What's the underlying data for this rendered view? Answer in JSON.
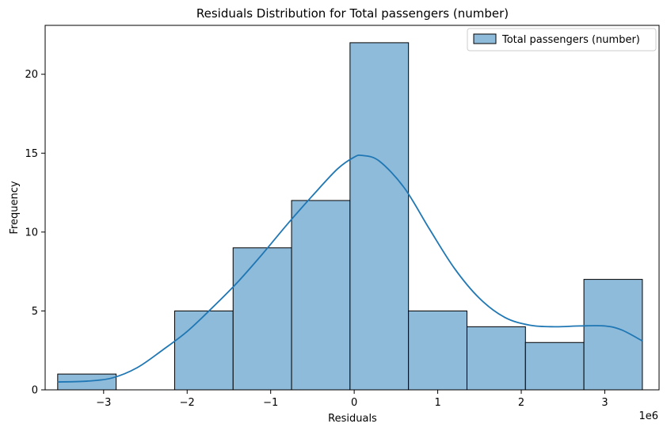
{
  "chart_data": {
    "type": "histogram",
    "title": "Residuals Distribution for Total passengers (number)",
    "xlabel": "Residuals",
    "ylabel": "Frequency",
    "x_offset_label": "1e6",
    "xlim": [
      -3.7,
      3.65
    ],
    "ylim": [
      0,
      23.1
    ],
    "x_ticks": [
      -3,
      -2,
      -1,
      0,
      1,
      2,
      3
    ],
    "x_tick_labels": [
      "−3",
      "−2",
      "−1",
      "0",
      "1",
      "2",
      "3"
    ],
    "y_ticks": [
      0,
      5,
      10,
      15,
      20
    ],
    "y_tick_labels": [
      "0",
      "5",
      "10",
      "15",
      "20"
    ],
    "grid": false,
    "legend": {
      "position": "top-right",
      "entries": [
        "Total passengers (number)"
      ]
    },
    "colors": {
      "bar_fill": "#8fbbdb",
      "bar_edge": "#000000",
      "kde_line": "#1f77b4"
    },
    "series": [
      {
        "name": "Total passengers (number)",
        "bins": [
          {
            "start": -3.55,
            "end": -2.85,
            "count": 1
          },
          {
            "start": -2.85,
            "end": -2.15,
            "count": 0
          },
          {
            "start": -2.15,
            "end": -1.45,
            "count": 5
          },
          {
            "start": -1.45,
            "end": -0.75,
            "count": 9
          },
          {
            "start": -0.75,
            "end": -0.05,
            "count": 12
          },
          {
            "start": -0.05,
            "end": 0.65,
            "count": 22
          },
          {
            "start": 0.65,
            "end": 1.35,
            "count": 5
          },
          {
            "start": 1.35,
            "end": 2.05,
            "count": 4
          },
          {
            "start": 2.05,
            "end": 2.75,
            "count": 3
          },
          {
            "start": 2.75,
            "end": 3.45,
            "count": 7
          }
        ],
        "kde": {
          "x": [
            -3.55,
            -3.2,
            -2.9,
            -2.6,
            -2.3,
            -2.0,
            -1.7,
            -1.4,
            -1.1,
            -0.8,
            -0.5,
            -0.2,
            0.0,
            0.1,
            0.3,
            0.6,
            0.9,
            1.2,
            1.5,
            1.8,
            2.1,
            2.4,
            2.7,
            3.0,
            3.2,
            3.45
          ],
          "y": [
            0.5,
            0.55,
            0.75,
            1.4,
            2.5,
            3.7,
            5.2,
            6.8,
            8.6,
            10.5,
            12.3,
            14.0,
            14.75,
            14.85,
            14.5,
            12.8,
            10.2,
            7.7,
            5.8,
            4.6,
            4.1,
            4.0,
            4.05,
            4.05,
            3.8,
            3.1
          ]
        }
      }
    ]
  }
}
